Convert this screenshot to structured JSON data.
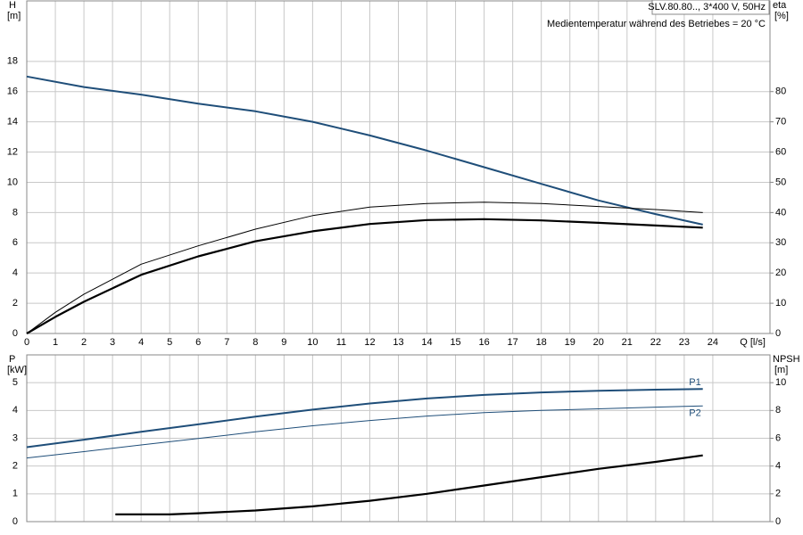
{
  "chart_data": [
    {
      "type": "line",
      "title": "SLV.80.80.., 3*400 V, 50Hz",
      "subtitle": "Medientemperatur während des Betriebes = 20 °C",
      "y_label": "H",
      "y_unit": "[m]",
      "y2_label": "eta",
      "y2_unit": "[%]",
      "x_label": "Q [l/s]",
      "xlim": [
        0,
        26
      ],
      "xticks": [
        0,
        1,
        2,
        3,
        4,
        5,
        6,
        7,
        8,
        9,
        10,
        11,
        12,
        13,
        14,
        15,
        16,
        17,
        18,
        19,
        20,
        21,
        22,
        23,
        24
      ],
      "show_xtick_labels": true,
      "ylim": [
        0,
        22
      ],
      "yticks": [
        0,
        2,
        4,
        6,
        8,
        10,
        12,
        14,
        16,
        18
      ],
      "y2lim": [
        0,
        110
      ],
      "y2ticks": [
        0,
        10,
        20,
        30,
        40,
        50,
        60,
        70,
        80
      ],
      "grid": true,
      "series": [
        {
          "color": "#1f4e79",
          "linewidth": 2,
          "x": [
            0,
            2,
            4,
            6,
            8,
            10,
            12,
            14,
            16,
            18,
            20,
            22,
            23.65
          ],
          "values": [
            17.0,
            16.3,
            15.8,
            15.2,
            14.7,
            14.0,
            13.1,
            12.1,
            11.0,
            9.9,
            8.8,
            7.9,
            7.2
          ]
        },
        {
          "color": "#000000",
          "linewidth": 1,
          "axis": "y2",
          "x": [
            0,
            1,
            2,
            4,
            6,
            8,
            10,
            12,
            14,
            16,
            18,
            20,
            22,
            23.65
          ],
          "values": [
            0,
            7,
            13,
            22.9,
            29,
            34.5,
            39,
            41.8,
            43,
            43.4,
            43,
            42,
            41,
            40
          ]
        },
        {
          "color": "#000000",
          "linewidth": 2.2,
          "axis": "y2",
          "x": [
            0,
            1,
            2,
            4,
            6,
            8,
            10,
            12,
            14,
            16,
            18,
            20,
            22,
            23.65
          ],
          "values": [
            0,
            5.5,
            10.5,
            19.4,
            25.5,
            30.5,
            33.8,
            36.2,
            37.5,
            37.8,
            37.4,
            36.6,
            35.7,
            35
          ]
        }
      ]
    },
    {
      "type": "line",
      "y_label": "P",
      "y_unit": "[kW]",
      "y2_label": "NPSH",
      "y2_unit": "[m]",
      "xlim": [
        0,
        26
      ],
      "xticks": [
        0,
        1,
        2,
        3,
        4,
        5,
        6,
        7,
        8,
        9,
        10,
        11,
        12,
        13,
        14,
        15,
        16,
        17,
        18,
        19,
        20,
        21,
        22,
        23,
        24
      ],
      "show_xtick_labels": false,
      "ylim": [
        0,
        6
      ],
      "yticks": [
        0,
        1,
        2,
        3,
        4,
        5
      ],
      "y2lim": [
        0,
        12
      ],
      "y2ticks": [
        0,
        2,
        4,
        6,
        8,
        10
      ],
      "grid": true,
      "series": [
        {
          "name": "P1",
          "label_side": "above",
          "color": "#1f4e79",
          "linewidth": 2,
          "x": [
            0,
            2,
            4,
            6,
            8,
            10,
            12,
            14,
            16,
            18,
            20,
            22,
            23.65
          ],
          "values": [
            2.68,
            2.95,
            3.23,
            3.5,
            3.78,
            4.03,
            4.25,
            4.43,
            4.56,
            4.65,
            4.71,
            4.75,
            4.77
          ]
        },
        {
          "name": "P2",
          "label_side": "below",
          "color": "#1f4e79",
          "linewidth": 1,
          "x": [
            0,
            2,
            4,
            6,
            8,
            10,
            12,
            14,
            16,
            18,
            20,
            22,
            23.65
          ],
          "values": [
            2.29,
            2.52,
            2.76,
            2.99,
            3.23,
            3.45,
            3.64,
            3.8,
            3.92,
            4.0,
            4.06,
            4.12,
            4.16
          ]
        },
        {
          "color": "#000000",
          "linewidth": 2.2,
          "axis": "y2",
          "x": [
            3.1,
            5,
            6,
            8,
            10,
            12,
            14,
            16,
            18,
            20,
            22,
            23.65
          ],
          "values": [
            0.52,
            0.52,
            0.6,
            0.8,
            1.1,
            1.5,
            2.0,
            2.6,
            3.2,
            3.8,
            4.3,
            4.77
          ]
        }
      ]
    }
  ]
}
